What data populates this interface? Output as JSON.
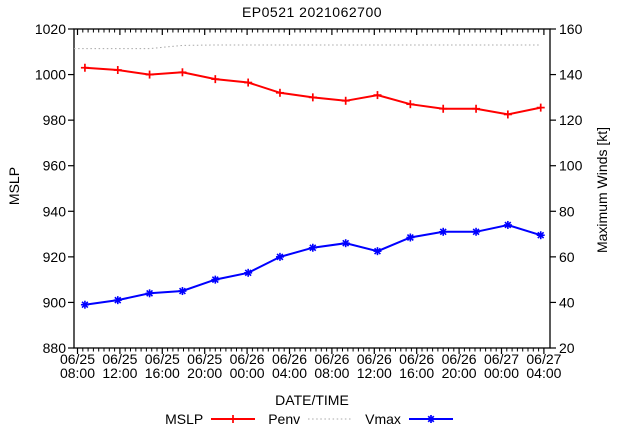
{
  "figure": {
    "title": "EP0521 2021062700",
    "xlabel": "DATE/TIME",
    "ylabel_left": "MSLP",
    "ylabel_right": "Maximum Winds [kt]",
    "background_color": "#ffffff",
    "axis_color": "#000000"
  },
  "legend": {
    "entries": [
      {
        "label": "MSLP",
        "color": "#ff0000",
        "style": "solid",
        "marker": "plus"
      },
      {
        "label": "Penv",
        "color": "#a8a8a8",
        "style": "dotted",
        "marker": "none"
      },
      {
        "label": "Vmax",
        "color": "#0000ff",
        "style": "solid",
        "marker": "asterisk"
      }
    ]
  },
  "chart_data": {
    "type": "line",
    "title": "EP0521 2021062700",
    "xlabel": "DATE/TIME",
    "ylabel_left": "MSLP",
    "ylabel_right": "Maximum Winds [kt]",
    "grid": false,
    "legend_position": "bottom-center",
    "ylim_left": [
      880,
      1020
    ],
    "ylim_right": [
      20,
      160
    ],
    "ytick_step": 20,
    "ytick_labels_left": [
      "1020",
      "1000",
      "980",
      "960",
      "940",
      "920",
      "900",
      "880"
    ],
    "ytick_labels_right": [
      "160",
      "140",
      "120",
      "100",
      "80",
      "60",
      "40",
      "20"
    ],
    "x_hours_range": [
      0,
      44
    ],
    "x_major_tick_every_hours": 4,
    "x_minor_tick_every_hours": 0.5,
    "x_tick_labels": [
      [
        "06/25",
        "08:00"
      ],
      [
        "06/25",
        "12:00"
      ],
      [
        "06/25",
        "16:00"
      ],
      [
        "06/25",
        "20:00"
      ],
      [
        "06/26",
        "00:00"
      ],
      [
        "06/26",
        "04:00"
      ],
      [
        "06/26",
        "08:00"
      ],
      [
        "06/26",
        "12:00"
      ],
      [
        "06/26",
        "16:00"
      ],
      [
        "06/26",
        "20:00"
      ],
      [
        "06/27",
        "00:00"
      ],
      [
        "06/27",
        "04:00"
      ]
    ],
    "x_hours": [
      0.7,
      3.8,
      6.8,
      9.9,
      13.0,
      16.1,
      19.1,
      22.2,
      25.3,
      28.3,
      31.4,
      34.5,
      37.6,
      40.6,
      43.7
    ],
    "series": [
      {
        "name": "Penv",
        "axis": "left",
        "color": "#a8a8a8",
        "style": "dotted",
        "marker": "none",
        "extend_left": true,
        "values": [
          1011.4,
          1011.4,
          1011.4,
          1012.8,
          1013,
          1013,
          1013,
          1013,
          1013,
          1013,
          1013,
          1013,
          1013,
          1013,
          1013
        ]
      },
      {
        "name": "MSLP",
        "axis": "left",
        "color": "#ff0000",
        "style": "solid",
        "marker": "plus",
        "extend_left": false,
        "values": [
          1003,
          1002,
          1000,
          1001,
          998,
          996.5,
          992,
          990,
          988.5,
          991,
          987,
          985,
          985,
          982.5,
          985.5
        ]
      },
      {
        "name": "Vmax",
        "axis": "right",
        "color": "#0000ff",
        "style": "solid",
        "marker": "asterisk",
        "extend_left": false,
        "values": [
          39,
          41,
          44,
          45,
          50,
          53,
          60,
          64,
          66,
          62.5,
          68.5,
          71,
          71,
          74,
          69.5
        ]
      }
    ]
  }
}
